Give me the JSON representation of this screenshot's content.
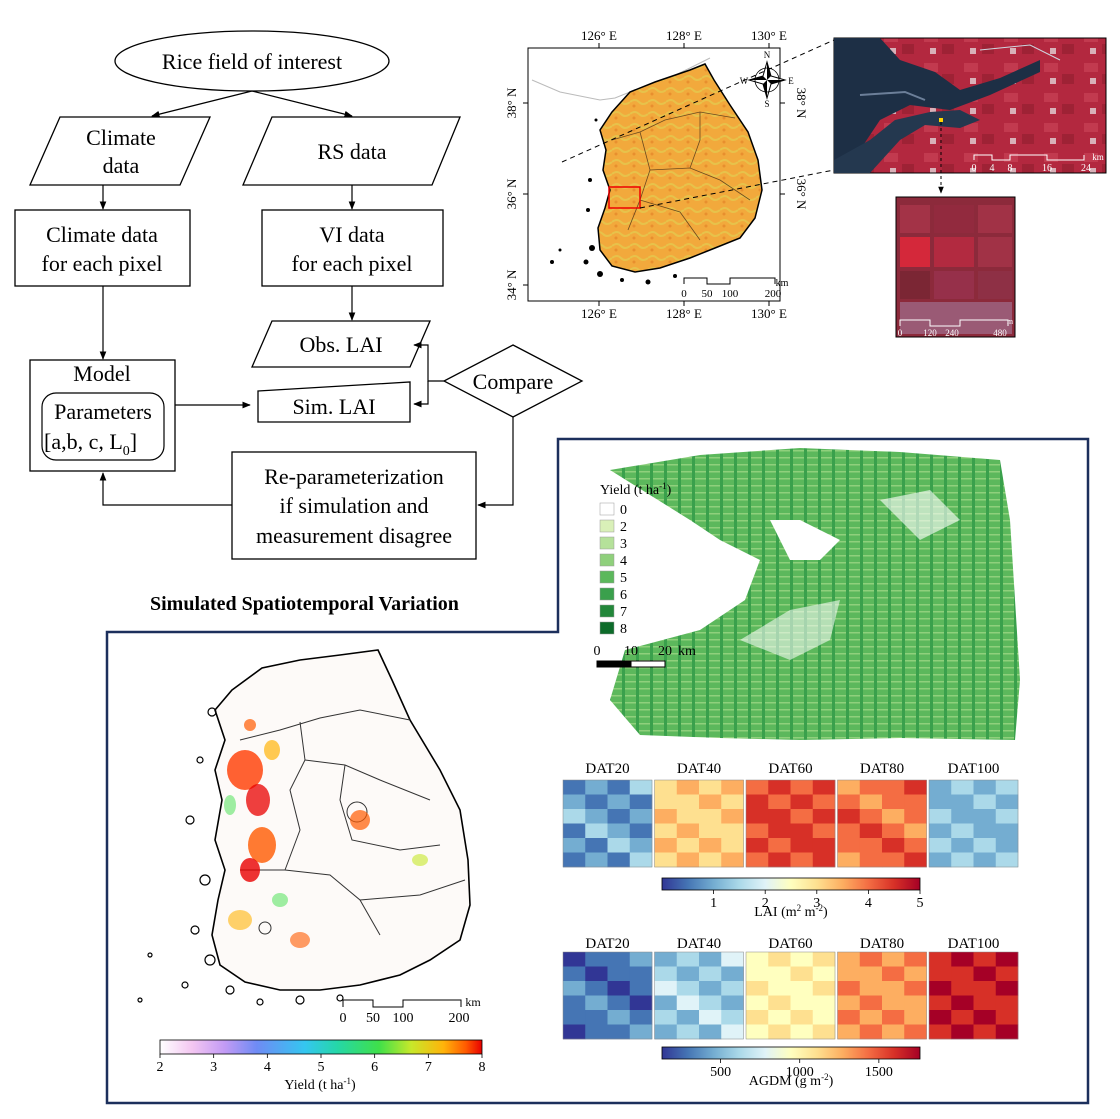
{
  "flowchart": {
    "start": "Rice field of interest",
    "climate_data": [
      "Climate",
      "data"
    ],
    "rs_data": "RS data",
    "climate_pixel": [
      "Climate data",
      "for each pixel"
    ],
    "vi_pixel": [
      "VI data",
      "for each pixel"
    ],
    "obs_lai": "Obs. LAI",
    "sim_lai": "Sim. LAI",
    "compare": "Compare",
    "model": "Model",
    "parameters": [
      "Parameters",
      "[a,b, c, L",
      "0",
      "]"
    ],
    "reparam": [
      "Re-parameterization",
      "if simulation and",
      "measurement disagree"
    ]
  },
  "study_map": {
    "lon_labels": [
      "126° E",
      "128° E",
      "130° E"
    ],
    "lat_labels": [
      "38° N",
      "36° N",
      "34° N"
    ],
    "compass": [
      "N",
      "E",
      "S",
      "W"
    ],
    "scale_ticks": [
      "0",
      "50",
      "100",
      "200"
    ],
    "scale_unit": "km",
    "landscape_colors": {
      "land": "#f2a93c",
      "terrain": "#e7c24a",
      "sea": "#ffffff",
      "outline": "#000000"
    }
  },
  "satellite_inset": {
    "scale_ticks": [
      "0",
      "4",
      "8",
      "16",
      "24"
    ],
    "scale_unit": "km",
    "colors": {
      "vegetation": "#b3283f",
      "water": "#1d2f45"
    }
  },
  "field_inset": {
    "scale_ticks": [
      "0",
      "120",
      "240",
      "480"
    ],
    "scale_unit": "m"
  },
  "section_title": "Simulated Spatiotemporal Variation",
  "regional_map": {
    "legend_title": "Yield (t ha",
    "legend_title_sup": "-1",
    "legend_title_close": ")",
    "legend_items": [
      {
        "label": "0",
        "color": "#ffffff"
      },
      {
        "label": "2",
        "color": "#d9f0b8"
      },
      {
        "label": "3",
        "color": "#b5e19a"
      },
      {
        "label": "4",
        "color": "#8fd07c"
      },
      {
        "label": "5",
        "color": "#5cb85c"
      },
      {
        "label": "6",
        "color": "#3aa04c"
      },
      {
        "label": "7",
        "color": "#23873a"
      },
      {
        "label": "8",
        "color": "#0d6b2a"
      }
    ],
    "scale_ticks": [
      "0",
      "10",
      "20"
    ],
    "scale_unit": "km"
  },
  "lai_panels": {
    "titles": [
      "DAT20",
      "DAT40",
      "DAT60",
      "DAT80",
      "DAT100"
    ],
    "colorbar_ticks": [
      "1",
      "2",
      "3",
      "4",
      "5"
    ],
    "colorbar_label": "LAI (m",
    "colorbar_label_sup1": "2",
    "colorbar_label_mid": " m",
    "colorbar_label_sup2": "-2",
    "colorbar_label_close": ")",
    "colormap": [
      "#313695",
      "#4575b4",
      "#74add1",
      "#abd9e9",
      "#e0f3f8",
      "#ffffbf",
      "#fee090",
      "#fdae61",
      "#f46d43",
      "#d73027",
      "#a50026"
    ]
  },
  "agdm_panels": {
    "titles": [
      "DAT20",
      "DAT40",
      "DAT60",
      "DAT80",
      "DAT100"
    ],
    "colorbar_ticks": [
      "500",
      "1000",
      "1500"
    ],
    "colorbar_label": "AGDM (g m",
    "colorbar_label_sup": "-2",
    "colorbar_label_close": ")"
  },
  "national_map": {
    "scale_ticks": [
      "0",
      "50",
      "100",
      "200"
    ],
    "scale_unit": "km",
    "colorbar_ticks": [
      "2",
      "3",
      "4",
      "5",
      "6",
      "7",
      "8"
    ],
    "colorbar_label": "Yield (t ha",
    "colorbar_label_sup": "-1",
    "colorbar_label_close": ")",
    "colormap": [
      "#ffffff",
      "#f3c6f1",
      "#c39bf5",
      "#6f8bf5",
      "#34c6f0",
      "#25d7a8",
      "#3fe04a",
      "#c7e82a",
      "#ffb40a",
      "#ff5a00",
      "#e80000"
    ]
  }
}
